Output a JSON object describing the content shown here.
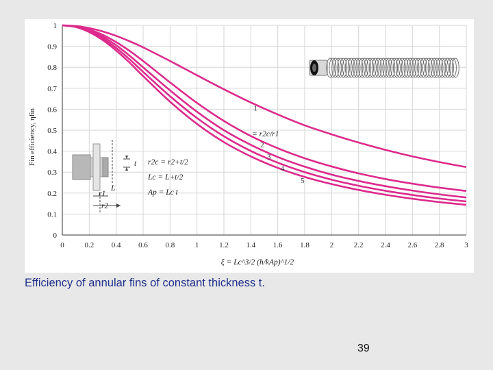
{
  "caption": "Efficiency of annular fins of constant thickness t.",
  "page_number": "39",
  "colors": {
    "curve": "#dd2a8c",
    "grid": "#d6d6d6",
    "axis": "#333333",
    "caption": "#1f2f8a"
  },
  "icons": [
    "annular-fin-cross-section-icon",
    "finned-tube-icon"
  ],
  "chart_data": {
    "type": "line",
    "title": "",
    "xlabel": "ξ = Lc^3/2 (h/kAp)^1/2",
    "ylabel": "Fin efficiency, ηfin",
    "xlim": [
      0,
      3
    ],
    "ylim": [
      0,
      1
    ],
    "grid": true,
    "x_ticks": [
      "0",
      "0.2",
      "0.4",
      "0.6",
      "0.8",
      "1",
      "1.2",
      "1.4",
      "1.6",
      "1.8",
      "2",
      "2.2",
      "2.4",
      "2.6",
      "2.8",
      "3"
    ],
    "y_ticks": [
      "0",
      "0.1",
      "0.2",
      "0.3",
      "0.4",
      "0.5",
      "0.6",
      "0.7",
      "0.8",
      "0.9",
      "1"
    ],
    "curve_legend_label": "= r2c/r1",
    "inset_labels": {
      "r2c": "r2c = r2+t/2",
      "lc": "Lc = L+t/2",
      "ap": "Ap = Lc t",
      "t": "t",
      "l": "L",
      "r1": "r1",
      "r2": "r2"
    },
    "series": [
      {
        "name": "1",
        "x": [
          0,
          0.1,
          0.2,
          0.3,
          0.4,
          0.5,
          0.6,
          0.8,
          1.0,
          1.2,
          1.4,
          1.6,
          1.8,
          2.0,
          2.2,
          2.4,
          2.6,
          2.8,
          3.0
        ],
        "values": [
          1.0,
          0.997,
          0.987,
          0.971,
          0.95,
          0.924,
          0.895,
          0.83,
          0.762,
          0.695,
          0.632,
          0.575,
          0.523,
          0.48,
          0.441,
          0.406,
          0.375,
          0.348,
          0.324
        ]
      },
      {
        "name": "2",
        "x": [
          0,
          0.1,
          0.2,
          0.3,
          0.4,
          0.5,
          0.6,
          0.8,
          1.0,
          1.2,
          1.4,
          1.6,
          1.8,
          2.0,
          2.2,
          2.4,
          2.6,
          2.8,
          3.0
        ],
        "values": [
          1.0,
          0.995,
          0.98,
          0.955,
          0.92,
          0.878,
          0.83,
          0.728,
          0.63,
          0.544,
          0.472,
          0.414,
          0.366,
          0.327,
          0.294,
          0.267,
          0.245,
          0.226,
          0.21
        ]
      },
      {
        "name": "3",
        "x": [
          0,
          0.1,
          0.2,
          0.3,
          0.4,
          0.5,
          0.6,
          0.8,
          1.0,
          1.2,
          1.4,
          1.6,
          1.8,
          2.0,
          2.2,
          2.4,
          2.6,
          2.8,
          3.0
        ],
        "values": [
          1.0,
          0.994,
          0.976,
          0.946,
          0.905,
          0.855,
          0.8,
          0.69,
          0.588,
          0.5,
          0.43,
          0.372,
          0.326,
          0.288,
          0.258,
          0.233,
          0.212,
          0.194,
          0.179
        ]
      },
      {
        "name": "4",
        "x": [
          0,
          0.1,
          0.2,
          0.3,
          0.4,
          0.5,
          0.6,
          0.8,
          1.0,
          1.2,
          1.4,
          1.6,
          1.8,
          2.0,
          2.2,
          2.4,
          2.6,
          2.8,
          3.0
        ],
        "values": [
          1.0,
          0.993,
          0.972,
          0.938,
          0.892,
          0.838,
          0.778,
          0.662,
          0.558,
          0.471,
          0.401,
          0.345,
          0.3,
          0.264,
          0.235,
          0.211,
          0.191,
          0.174,
          0.16
        ]
      },
      {
        "name": "5",
        "x": [
          0,
          0.1,
          0.2,
          0.3,
          0.4,
          0.5,
          0.6,
          0.8,
          1.0,
          1.2,
          1.4,
          1.6,
          1.8,
          2.0,
          2.2,
          2.4,
          2.6,
          2.8,
          3.0
        ],
        "values": [
          1.0,
          0.992,
          0.968,
          0.93,
          0.88,
          0.822,
          0.758,
          0.636,
          0.53,
          0.443,
          0.375,
          0.32,
          0.277,
          0.243,
          0.215,
          0.192,
          0.173,
          0.157,
          0.144
        ]
      }
    ]
  }
}
